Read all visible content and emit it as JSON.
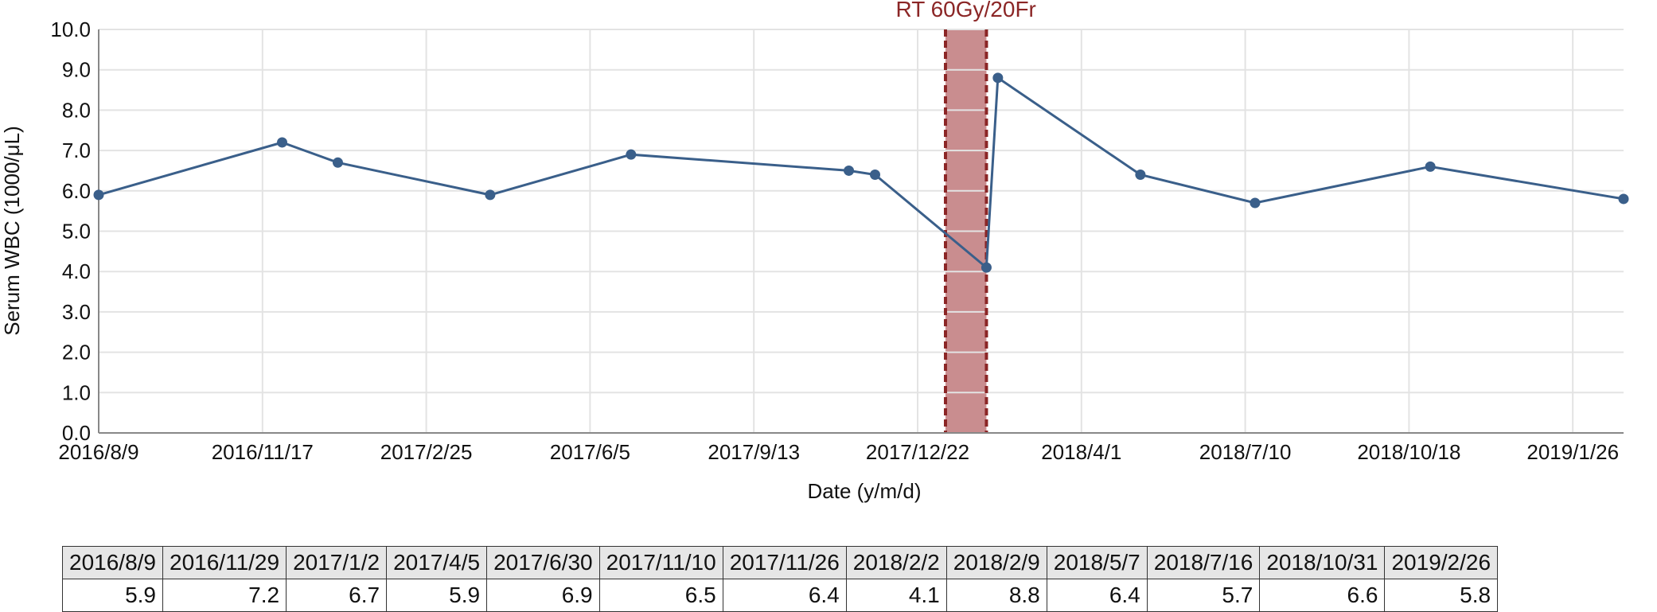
{
  "chart_data": {
    "type": "line",
    "xlabel": "Date (y/m/d)",
    "ylabel": "Serum WBC (1000/μL)",
    "ylim": [
      0,
      10
    ],
    "yticks": [
      "0.0",
      "1.0",
      "2.0",
      "3.0",
      "4.0",
      "5.0",
      "6.0",
      "7.0",
      "8.0",
      "9.0",
      "10.0"
    ],
    "xlim": [
      "2016-08-09",
      "2019-02-26"
    ],
    "xticks": [
      {
        "date": "2016-08-09",
        "label": "2016/8/9"
      },
      {
        "date": "2016-11-17",
        "label": "2016/11/17"
      },
      {
        "date": "2017-02-25",
        "label": "2017/2/25"
      },
      {
        "date": "2017-06-05",
        "label": "2017/6/5"
      },
      {
        "date": "2017-09-13",
        "label": "2017/9/13"
      },
      {
        "date": "2017-12-22",
        "label": "2017/12/22"
      },
      {
        "date": "2018-04-01",
        "label": "2018/4/1"
      },
      {
        "date": "2018-07-10",
        "label": "2018/7/10"
      },
      {
        "date": "2018-10-18",
        "label": "2018/10/18"
      },
      {
        "date": "2019-01-26",
        "label": "2019/1/26"
      }
    ],
    "grid": true,
    "series": [
      {
        "color": "#3a5f8a",
        "points": [
          {
            "x": "2016-08-09",
            "y": 5.9
          },
          {
            "x": "2016-11-29",
            "y": 7.2
          },
          {
            "x": "2017-01-02",
            "y": 6.7
          },
          {
            "x": "2017-04-05",
            "y": 5.9
          },
          {
            "x": "2017-06-30",
            "y": 6.9
          },
          {
            "x": "2017-11-10",
            "y": 6.5
          },
          {
            "x": "2017-11-26",
            "y": 6.4
          },
          {
            "x": "2018-02-02",
            "y": 4.1
          },
          {
            "x": "2018-02-09",
            "y": 8.8
          },
          {
            "x": "2018-05-07",
            "y": 6.4
          },
          {
            "x": "2018-07-16",
            "y": 5.7
          },
          {
            "x": "2018-10-31",
            "y": 6.6
          },
          {
            "x": "2019-02-26",
            "y": 5.8
          }
        ]
      }
    ],
    "annotation": {
      "label": "RT 60Gy/20Fr",
      "start": "2018-01-08",
      "end": "2018-02-02",
      "fill": "#c98d8f",
      "border": "#8b2626"
    }
  },
  "table": {
    "dates": [
      "2016/8/9",
      "2016/11/29",
      "2017/1/2",
      "2017/4/5",
      "2017/6/30",
      "2017/11/10",
      "2017/11/26",
      "2018/2/2",
      "2018/2/9",
      "2018/5/7",
      "2018/7/16",
      "2018/10/31",
      "2019/2/26"
    ],
    "values": [
      "5.9",
      "7.2",
      "6.7",
      "5.9",
      "6.9",
      "6.5",
      "6.4",
      "4.1",
      "8.8",
      "6.4",
      "5.7",
      "6.6",
      "5.8"
    ]
  }
}
